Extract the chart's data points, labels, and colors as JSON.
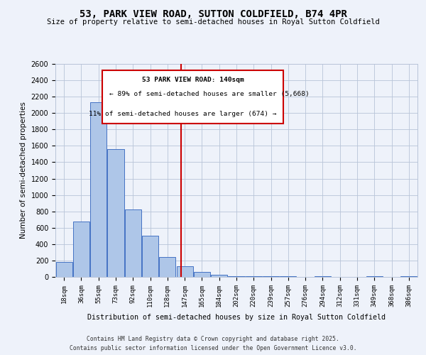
{
  "title": "53, PARK VIEW ROAD, SUTTON COLDFIELD, B74 4PR",
  "subtitle": "Size of property relative to semi-detached houses in Royal Sutton Coldfield",
  "xlabel": "Distribution of semi-detached houses by size in Royal Sutton Coldfield",
  "ylabel": "Number of semi-detached properties",
  "categories": [
    "18sqm",
    "36sqm",
    "55sqm",
    "73sqm",
    "92sqm",
    "110sqm",
    "128sqm",
    "147sqm",
    "165sqm",
    "184sqm",
    "202sqm",
    "220sqm",
    "239sqm",
    "257sqm",
    "276sqm",
    "294sqm",
    "312sqm",
    "331sqm",
    "349sqm",
    "368sqm",
    "386sqm"
  ],
  "bar_values": [
    180,
    680,
    2130,
    1560,
    820,
    500,
    240,
    130,
    60,
    30,
    10,
    5,
    5,
    5,
    0,
    5,
    0,
    0,
    5,
    0,
    5
  ],
  "bar_color": "#aec6e8",
  "bar_edge_color": "#4472c4",
  "marker_label": "53 PARK VIEW ROAD: 140sqm",
  "annotation_line1": "← 89% of semi-detached houses are smaller (5,668)",
  "annotation_line2": "11% of semi-detached houses are larger (674) →",
  "ylim": [
    0,
    2600
  ],
  "yticks": [
    0,
    200,
    400,
    600,
    800,
    1000,
    1200,
    1400,
    1600,
    1800,
    2000,
    2200,
    2400,
    2600
  ],
  "vline_color": "#cc0000",
  "box_color": "#cc0000",
  "footer_line1": "Contains HM Land Registry data © Crown copyright and database right 2025.",
  "footer_line2": "Contains public sector information licensed under the Open Government Licence v3.0.",
  "bg_color": "#eef2fa",
  "plot_bg_color": "#eef2fa",
  "grid_color": "#b8c4d8",
  "vline_index": 6.78
}
